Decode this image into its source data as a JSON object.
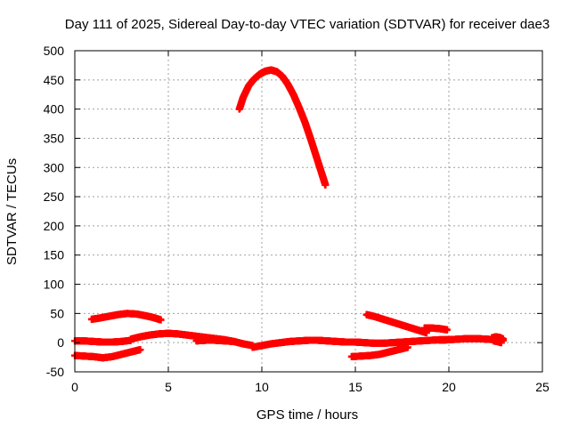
{
  "chart_data": {
    "type": "scatter",
    "title": "Day 111 of 2025, Sidereal Day-to-day VTEC variation (SDTVAR) for receiver dae3",
    "xlabel": "GPS time / hours",
    "ylabel": "SDTVAR / TECUs",
    "xlim": [
      0,
      25
    ],
    "ylim": [
      -50,
      500
    ],
    "xticks": [
      0,
      5,
      10,
      15,
      20,
      25
    ],
    "yticks": [
      -50,
      0,
      50,
      100,
      150,
      200,
      250,
      300,
      350,
      400,
      450,
      500
    ],
    "grid": true,
    "marker": "+",
    "color": "#ff0000",
    "series": [
      {
        "name": "arc-main-peak",
        "x": [
          8.8,
          9.0,
          9.3,
          9.6,
          9.9,
          10.2,
          10.5,
          10.8,
          11.1,
          11.4,
          11.7,
          12.0,
          12.3,
          12.6,
          12.9,
          13.2,
          13.4
        ],
        "y": [
          400,
          420,
          440,
          452,
          460,
          465,
          467,
          464,
          456,
          442,
          424,
          402,
          378,
          350,
          320,
          290,
          270
        ]
      },
      {
        "name": "arc-early-high",
        "x": [
          0.9,
          1.3,
          1.8,
          2.3,
          2.8,
          3.3,
          3.8,
          4.2,
          4.6
        ],
        "y": [
          40,
          42,
          45,
          48,
          50,
          49,
          46,
          43,
          39
        ]
      },
      {
        "name": "arc-evening-high",
        "x": [
          15.6,
          16.0,
          16.5,
          17.0,
          17.5,
          18.0,
          18.4,
          18.8
        ],
        "y": [
          48,
          45,
          40,
          35,
          30,
          25,
          21,
          17
        ]
      },
      {
        "name": "arc-late-small",
        "x": [
          18.7,
          19.1,
          19.5,
          19.9
        ],
        "y": [
          25,
          25,
          24,
          22
        ]
      },
      {
        "name": "arc-early-neg",
        "x": [
          0.0,
          0.5,
          1.0,
          1.5,
          2.0,
          2.5,
          3.0,
          3.5
        ],
        "y": [
          -22,
          -23,
          -24,
          -26,
          -24,
          -20,
          -16,
          -12
        ]
      },
      {
        "name": "arc-early-flat",
        "x": [
          0.0,
          0.5,
          1.0,
          1.5,
          2.0,
          2.5,
          3.0
        ],
        "y": [
          3,
          3,
          2,
          1,
          1,
          2,
          4
        ]
      },
      {
        "name": "arc-morning-bump",
        "x": [
          3.0,
          3.5,
          4.0,
          4.5,
          5.0,
          5.5,
          6.0,
          6.5,
          7.0,
          7.5,
          8.0,
          8.5,
          9.0,
          9.5
        ],
        "y": [
          6,
          10,
          13,
          15,
          16,
          15,
          13,
          11,
          9,
          7,
          5,
          2,
          -2,
          -5
        ]
      },
      {
        "name": "arc-morning-low",
        "x": [
          6.5,
          7.0,
          7.5,
          8.0,
          8.5
        ],
        "y": [
          3,
          4,
          4,
          3,
          2
        ]
      },
      {
        "name": "arc-midday-flat",
        "x": [
          9.5,
          10.0,
          10.5,
          11.0,
          11.5,
          12.0,
          12.5,
          13.0,
          13.5,
          14.0,
          14.5
        ],
        "y": [
          -8,
          -5,
          -2,
          0,
          2,
          3,
          4,
          4,
          3,
          2,
          1
        ]
      },
      {
        "name": "arc-afternoon-flat",
        "x": [
          14.5,
          15.0,
          15.5,
          16.0,
          16.5,
          17.0,
          17.5,
          18.0,
          18.5,
          19.0,
          19.5,
          20.0
        ],
        "y": [
          1,
          1,
          0,
          -1,
          -1,
          0,
          1,
          2,
          3,
          4,
          5,
          5
        ]
      },
      {
        "name": "arc-afternoon-neg",
        "x": [
          14.8,
          15.3,
          15.8,
          16.3,
          16.8,
          17.3,
          17.8
        ],
        "y": [
          -24,
          -23,
          -22,
          -20,
          -16,
          -12,
          -8
        ]
      },
      {
        "name": "arc-late-flat",
        "x": [
          19.5,
          20.0,
          20.5,
          21.0,
          21.5,
          22.0,
          22.5,
          22.9
        ],
        "y": [
          4,
          5,
          6,
          7,
          7,
          6,
          5,
          4
        ]
      },
      {
        "name": "arc-end-cluster",
        "x": [
          22.3,
          22.5,
          22.7,
          22.9,
          22.4,
          22.6,
          22.8
        ],
        "y": [
          8,
          10,
          9,
          6,
          3,
          2,
          0
        ]
      }
    ]
  }
}
